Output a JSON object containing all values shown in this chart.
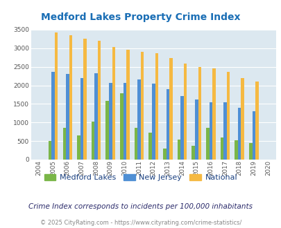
{
  "title": "Medford Lakes Property Crime Index",
  "years": [
    2004,
    2005,
    2006,
    2007,
    2008,
    2009,
    2010,
    2011,
    2012,
    2013,
    2014,
    2015,
    2016,
    2017,
    2018,
    2019,
    2020
  ],
  "medford_lakes": [
    0,
    500,
    850,
    650,
    1020,
    1580,
    1780,
    850,
    720,
    290,
    540,
    380,
    860,
    600,
    530,
    440,
    0
  ],
  "new_jersey": [
    0,
    2360,
    2310,
    2190,
    2320,
    2060,
    2060,
    2150,
    2050,
    1900,
    1720,
    1610,
    1550,
    1550,
    1400,
    1310,
    0
  ],
  "national": [
    0,
    3420,
    3340,
    3260,
    3200,
    3040,
    2950,
    2900,
    2860,
    2730,
    2590,
    2490,
    2460,
    2370,
    2200,
    2110,
    0
  ],
  "bar_width": 0.22,
  "ylim": [
    0,
    3500
  ],
  "yticks": [
    0,
    500,
    1000,
    1500,
    2000,
    2500,
    3000,
    3500
  ],
  "colors": {
    "medford_lakes": "#7ab648",
    "new_jersey": "#4f8fd4",
    "national": "#f5b942"
  },
  "legend_labels": [
    "Medford Lakes",
    "New Jersey",
    "National"
  ],
  "subtitle": "Crime Index corresponds to incidents per 100,000 inhabitants",
  "footer": "© 2025 CityRating.com - https://www.cityrating.com/crime-statistics/",
  "plot_bg": "#dce8f0",
  "title_color": "#1a6eb5",
  "subtitle_color": "#2a2a6a",
  "footer_color": "#888888",
  "legend_color": "#1a4080",
  "grid_color": "#ffffff"
}
